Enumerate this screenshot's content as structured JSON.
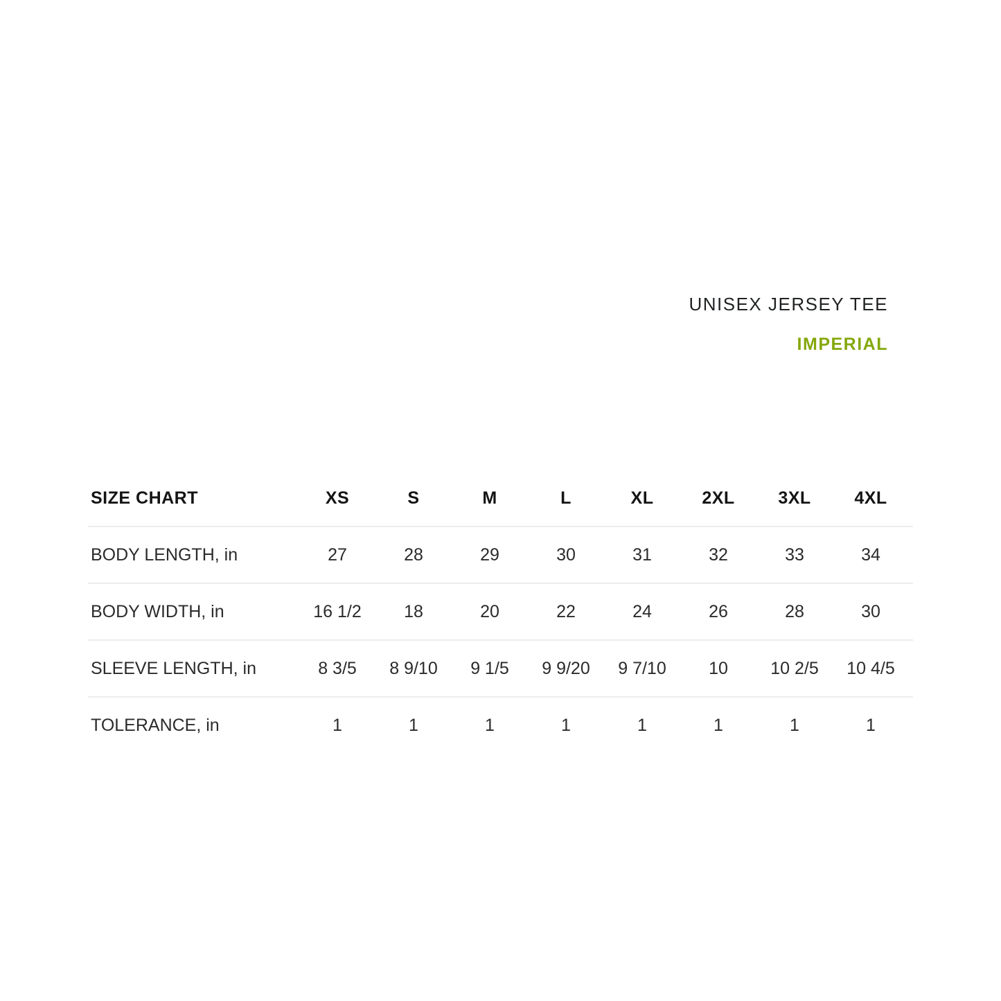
{
  "page": {
    "background_color": "#ffffff",
    "text_color": "#2b2b2b",
    "divider_color": "#ededed"
  },
  "header": {
    "product_title": "UNISEX JERSEY TEE",
    "unit_system_label": "IMPERIAL",
    "unit_system_color": "#84a80b"
  },
  "chart_data": {
    "type": "table",
    "title": "SIZE CHART",
    "units": "in",
    "columns": [
      "XS",
      "S",
      "M",
      "L",
      "XL",
      "2XL",
      "3XL",
      "4XL"
    ],
    "rows": [
      {
        "label": "BODY LENGTH, in",
        "values": [
          "27",
          "28",
          "29",
          "30",
          "31",
          "32",
          "33",
          "34"
        ]
      },
      {
        "label": "BODY WIDTH, in",
        "values": [
          "16 1/2",
          "18",
          "20",
          "22",
          "24",
          "26",
          "28",
          "30"
        ]
      },
      {
        "label": "SLEEVE LENGTH, in",
        "values": [
          "8 3/5",
          "8 9/10",
          "9 1/5",
          "9 9/20",
          "9 7/10",
          "10",
          "10 2/5",
          "10 4/5"
        ]
      },
      {
        "label": "TOLERANCE, in",
        "values": [
          "1",
          "1",
          "1",
          "1",
          "1",
          "1",
          "1",
          "1"
        ]
      }
    ]
  }
}
